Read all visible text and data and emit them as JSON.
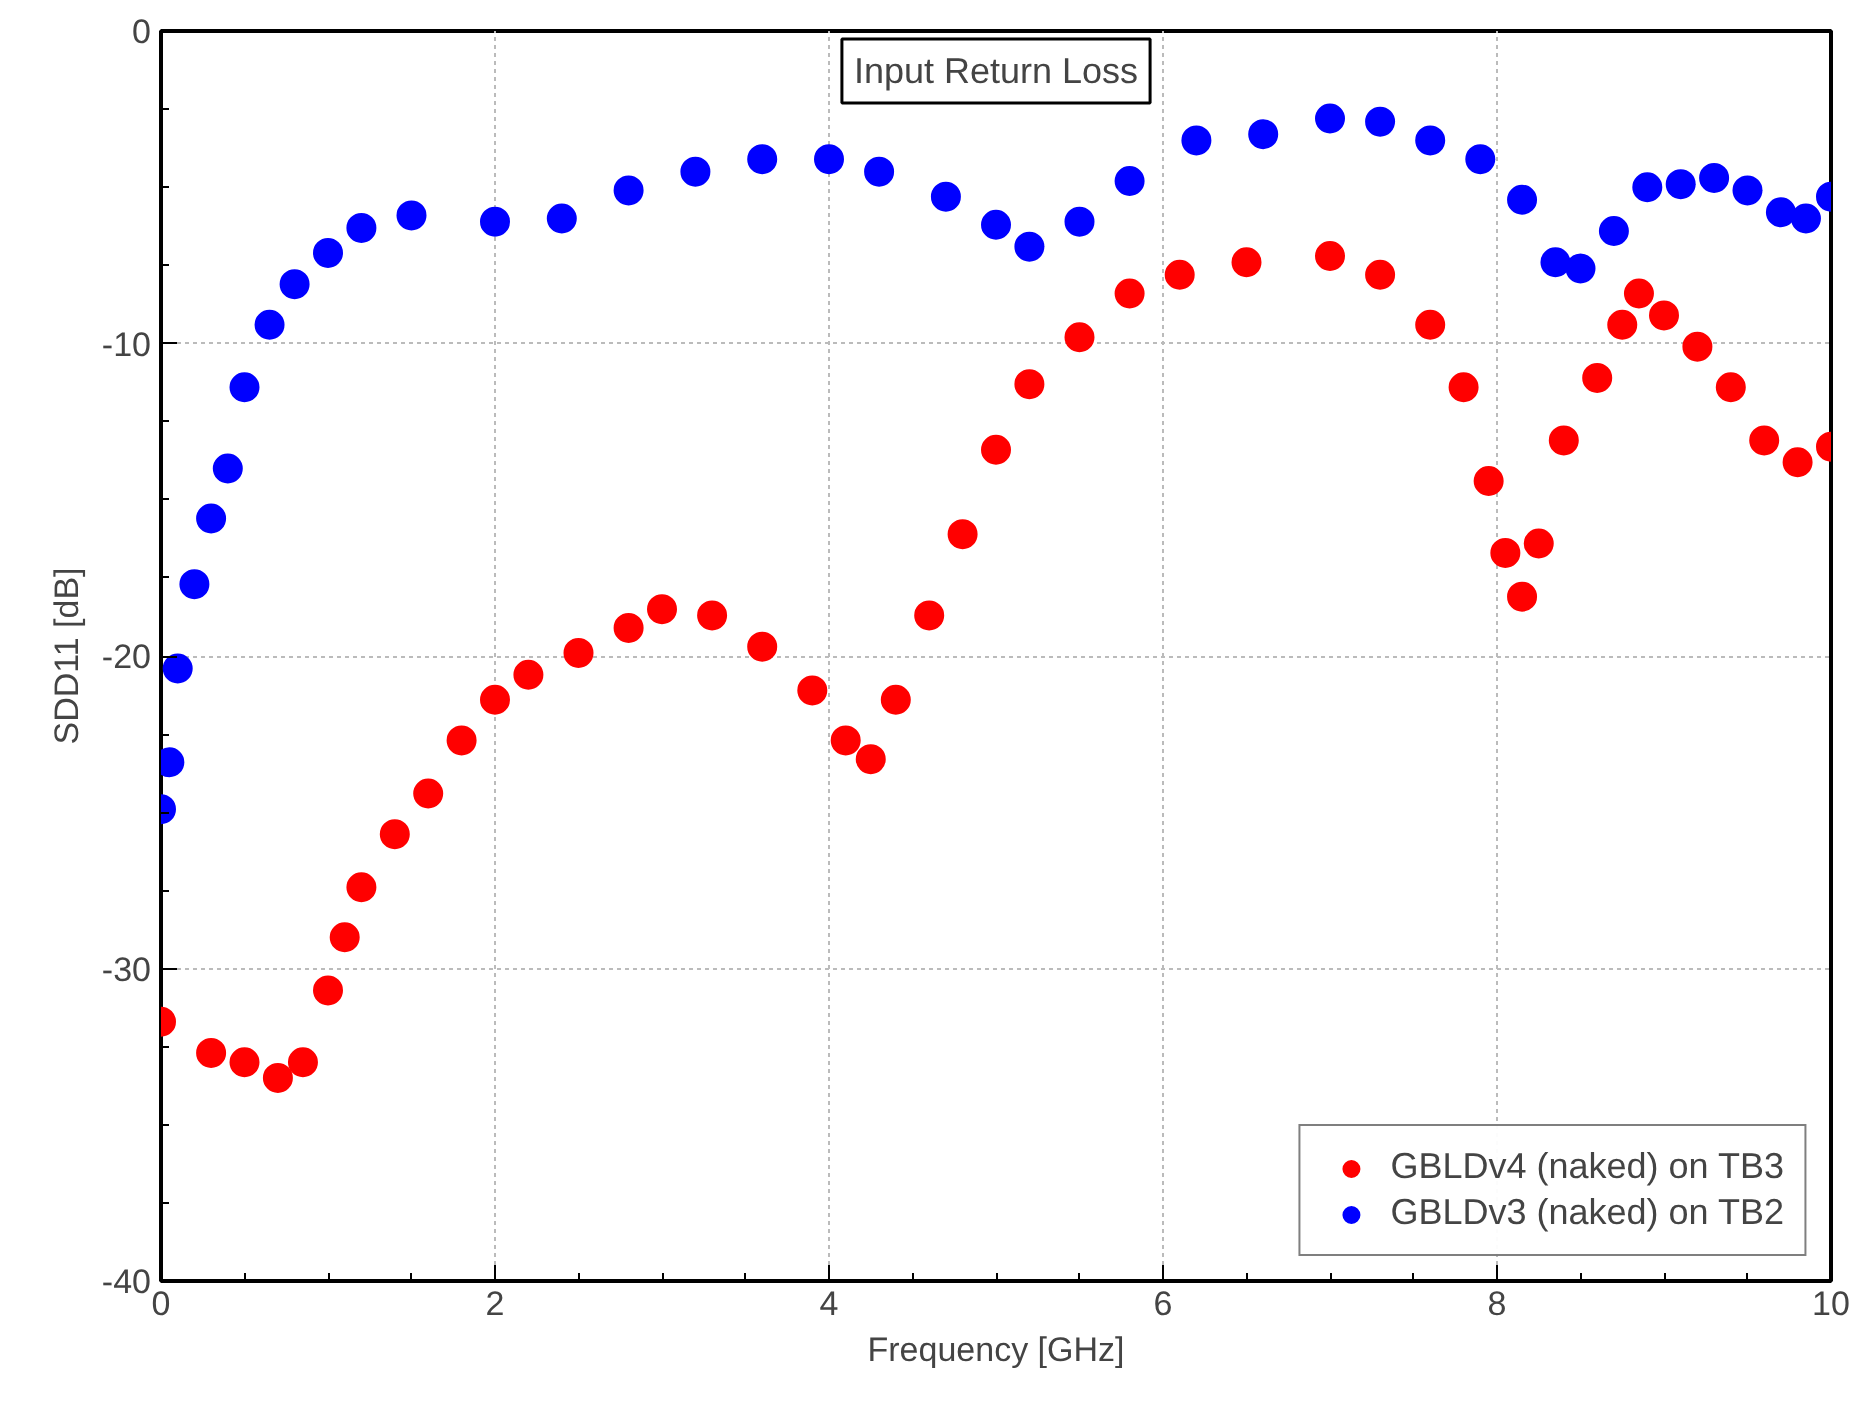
{
  "chart_data": {
    "type": "scatter",
    "title": "Input Return Loss",
    "xlabel": "Frequency [GHz]",
    "ylabel": "SDD11 [dB]",
    "xlim": [
      0,
      10
    ],
    "ylim": [
      -40,
      0
    ],
    "xticks": [
      0,
      2,
      4,
      6,
      8,
      10
    ],
    "yticks": [
      -40,
      -30,
      -20,
      -10,
      0
    ],
    "grid": true,
    "legend": "bottom right",
    "marker": "circle",
    "series": [
      {
        "name": "GBLDv4 (naked) on TB3",
        "color": "#ff0000",
        "x": [
          0,
          0.3,
          0.5,
          0.7,
          0.85,
          1.0,
          1.1,
          1.2,
          1.4,
          1.6,
          1.8,
          2.0,
          2.2,
          2.5,
          2.8,
          3.0,
          3.3,
          3.6,
          3.9,
          4.1,
          4.25,
          4.4,
          4.6,
          4.8,
          5.0,
          5.2,
          5.5,
          5.8,
          6.1,
          6.5,
          7.0,
          7.3,
          7.6,
          7.8,
          7.95,
          8.05,
          8.15,
          8.25,
          8.4,
          8.6,
          8.75,
          8.85,
          9.0,
          9.2,
          9.4,
          9.6,
          9.8,
          10
        ],
        "values": [
          -31.7,
          -32.7,
          -33,
          -33.5,
          -33,
          -30.7,
          -29,
          -27.4,
          -25.7,
          -24.4,
          -22.7,
          -21.4,
          -20.6,
          -19.9,
          -19.1,
          -18.5,
          -18.7,
          -19.7,
          -21.1,
          -22.7,
          -23.3,
          -21.4,
          -18.7,
          -16.1,
          -13.4,
          -11.3,
          -9.8,
          -8.4,
          -7.8,
          -7.4,
          -7.2,
          -7.8,
          -9.4,
          -11.4,
          -14.4,
          -16.7,
          -18.1,
          -16.4,
          -13.1,
          -11.1,
          -9.4,
          -8.4,
          -9.1,
          -10.1,
          -11.4,
          -13.1,
          -13.8,
          -13.3
        ]
      },
      {
        "name": "GBLDv3 (naked) on TB2",
        "color": "#0000ff",
        "x": [
          0,
          0.05,
          0.1,
          0.2,
          0.3,
          0.4,
          0.5,
          0.65,
          0.8,
          1.0,
          1.2,
          1.5,
          2.0,
          2.4,
          2.8,
          3.2,
          3.6,
          4.0,
          4.3,
          4.7,
          5.0,
          5.2,
          5.5,
          5.8,
          6.2,
          6.6,
          7.0,
          7.3,
          7.6,
          7.9,
          8.15,
          8.35,
          8.5,
          8.7,
          8.9,
          9.1,
          9.3,
          9.5,
          9.7,
          9.85,
          10
        ],
        "values": [
          -24.9,
          -23.4,
          -20.4,
          -17.7,
          -15.6,
          -14,
          -11.4,
          -9.4,
          -8.1,
          -7.1,
          -6.3,
          -5.9,
          -6.1,
          -6,
          -5.1,
          -4.5,
          -4.1,
          -4.1,
          -4.5,
          -5.3,
          -6.2,
          -6.9,
          -6.1,
          -4.8,
          -3.5,
          -3.3,
          -2.8,
          -2.9,
          -3.5,
          -4.1,
          -5.4,
          -7.4,
          -7.6,
          -6.4,
          -5,
          -4.9,
          -4.7,
          -5.1,
          -5.8,
          -6,
          -5.3
        ]
      }
    ]
  }
}
